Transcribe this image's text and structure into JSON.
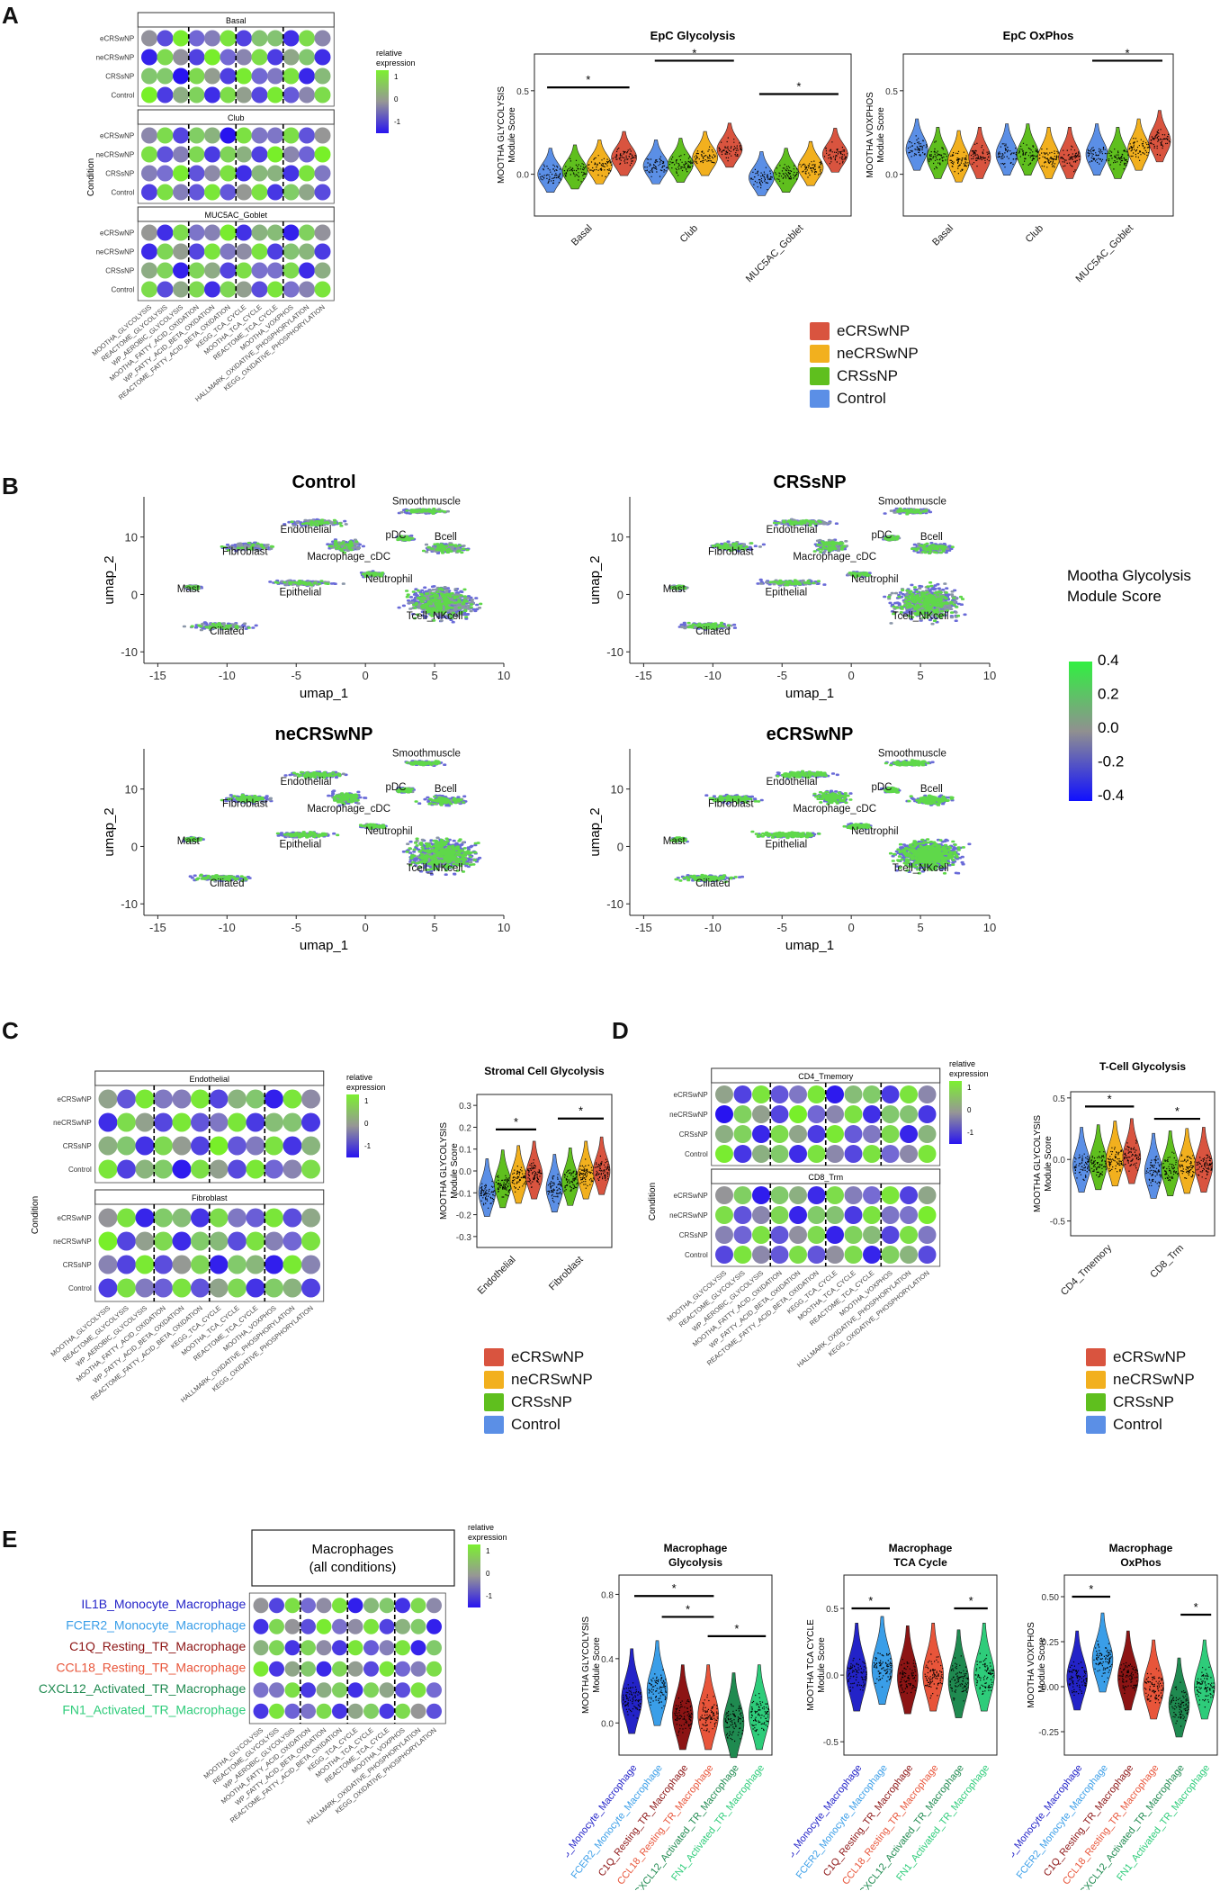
{
  "panels": {
    "A": "A",
    "B": "B",
    "C": "C",
    "D": "D",
    "E": "E"
  },
  "colors": {
    "eCRSwNP": "#d9543f",
    "neCRSwNP": "#f2b01e",
    "CRSsNP": "#5fbf1e",
    "Control": "#5b8fe6"
  },
  "conditions": [
    "eCRSwNP",
    "neCRSwNP",
    "CRSsNP",
    "Control"
  ],
  "pathways_12": [
    "MOOTHA_GLYCOLYSIS",
    "REACTOME_GLYCOLYSIS",
    "WP_AEROBIC_GLYCOLYSIS",
    "MOOTHA_FATTY_ACID_OXIDATION",
    "WP_FATTY_ACID_BETA_OXIDATION",
    "REACTOME_FATTY_ACID_BETA_OXIDATION",
    "KEGG_TCA_CYCLE",
    "MOOTHA_TCA_CYCLE",
    "REACTOME_TCA_CYCLE",
    "MOOTHA_VOXPHOS",
    "HALLMARK_OXIDATIVE_PHOSPHORYLATION",
    "KEGG_OXIDATIVE_PHOSPHORYLATION"
  ],
  "dot_legend": {
    "title": "relative\nexpression",
    "ticks": [
      "1",
      "0",
      "-1"
    ]
  },
  "condition_axis": "Condition",
  "panelA": {
    "dotplot": {
      "facets": [
        "Basal",
        "Club",
        "MUC5AC_Goblet"
      ]
    },
    "violin_gly": {
      "title": "EpC Glycolysis",
      "ylabel": [
        "MOOTHA GLYCOLYSIS",
        "Module Score"
      ],
      "yticks": [
        "0.0",
        "0.5"
      ],
      "groups": [
        "Basal",
        "Club",
        "MUC5AC_Goblet"
      ]
    },
    "violin_ox": {
      "title": "EpC OxPhos",
      "ylabel": [
        "MOOTHA VOXPHOS",
        "Module Score"
      ],
      "yticks": [
        "0.0",
        "0.5"
      ],
      "groups": [
        "Basal",
        "Club",
        "MUC5AC_Goblet"
      ]
    },
    "legend": [
      "eCRSwNP",
      "neCRSwNP",
      "CRSsNP",
      "Control"
    ]
  },
  "panelB": {
    "titles": [
      "Control",
      "CRSsNP",
      "neCRSwNP",
      "eCRSwNP"
    ],
    "xlabel": "umap_1",
    "ylabel": "umap_2",
    "xticks": [
      "-15",
      "-10",
      "-5",
      "0",
      "5",
      "10"
    ],
    "yticks": [
      "10",
      "0",
      "-10"
    ],
    "clusters": [
      "Smoothmuscle",
      "Endothelial",
      "pDC",
      "Bcell",
      "Fibroblast",
      "Macrophage_cDC",
      "Mast",
      "Neutrophil",
      "Epithelial",
      "Tcell_NKcell",
      "Ciliated"
    ],
    "colorbar": {
      "title": [
        "Mootha Glycolysis",
        "Module Score"
      ],
      "ticks": [
        "0.4",
        "0.2",
        "0.0",
        "-0.2",
        "-0.4"
      ]
    }
  },
  "panelC": {
    "dotplot": {
      "facets": [
        "Endothelial",
        "Fibroblast"
      ]
    },
    "violin": {
      "title": "Stromal Cell Glycolysis",
      "ylabel": [
        "MOOTHA GLYCOLYSIS",
        "Module Score"
      ],
      "yticks": [
        "0.3",
        "0.2",
        "0.1",
        "0.0",
        "-0.1",
        "-0.2",
        "-0.3"
      ],
      "groups": [
        "Endothelial",
        "Fibroblast"
      ]
    },
    "legend": [
      "eCRSwNP",
      "neCRSwNP",
      "CRSsNP",
      "Control"
    ]
  },
  "panelD": {
    "dotplot": {
      "facets": [
        "CD4_Tmemory",
        "CD8_Trm"
      ]
    },
    "violin": {
      "title": "T-Cell Glycolysis",
      "ylabel": [
        "MOOTHA GLYCOLYSIS",
        "Module Score"
      ],
      "yticks": [
        "0.5",
        "0.0",
        "-0.5"
      ],
      "groups": [
        "CD4_Tmemory",
        "CD8_Trm"
      ]
    },
    "legend": [
      "eCRSwNP",
      "neCRSwNP",
      "CRSsNP",
      "Control"
    ]
  },
  "panelE": {
    "header": [
      "Macrophages",
      "(all conditions)"
    ],
    "macrophages": [
      "IL1B_Monocyte_Macrophage",
      "FCER2_Monocyte_Macrophage",
      "C1Q_Resting_TR_Macrophage",
      "CCL18_Resting_TR_Macrophage",
      "CXCL12_Activated_TR_Macrophage",
      "FN1_Activated_TR_Macrophage"
    ],
    "mac_colors": [
      "#2323c8",
      "#3a9ee8",
      "#8c1414",
      "#e8553a",
      "#1f8a50",
      "#2ecc7a"
    ],
    "violins": [
      {
        "title": [
          "Macrophage",
          "Glycolysis"
        ],
        "ylabel": [
          "MOOTHA GLYCOLYSIS",
          "Module Score"
        ],
        "yticks": [
          "0.8",
          "0.4",
          "0.0"
        ]
      },
      {
        "title": [
          "Macrophage",
          "TCA Cycle"
        ],
        "ylabel": [
          "MOOTHA TCA CYCLE",
          "Module Score"
        ],
        "yticks": [
          "0.5",
          "0.0",
          "-0.5"
        ]
      },
      {
        "title": [
          "Macrophage",
          "OxPhos"
        ],
        "ylabel": [
          "MOOTHA VOXPHOS",
          "Module Score"
        ],
        "yticks": [
          "0.50",
          "0.25",
          "0.00",
          "-0.25"
        ]
      }
    ]
  },
  "star": "*",
  "chart_data": [
    {
      "type": "violin",
      "title": "EpC Glycolysis",
      "categories": [
        "Basal",
        "Club",
        "MUC5AC_Goblet"
      ],
      "series": [
        {
          "name": "Control",
          "values": [
            0.0,
            0.05,
            -0.02
          ]
        },
        {
          "name": "CRSsNP",
          "values": [
            0.02,
            0.06,
            0.0
          ]
        },
        {
          "name": "neCRSwNP",
          "values": [
            0.05,
            0.1,
            0.04
          ]
        },
        {
          "name": "eCRSwNP",
          "values": [
            0.1,
            0.15,
            0.12
          ]
        }
      ],
      "ylim": [
        -0.2,
        0.7
      ],
      "ylabel": "MOOTHA GLYCOLYSIS Module Score"
    },
    {
      "type": "violin",
      "title": "EpC OxPhos",
      "categories": [
        "Basal",
        "Club",
        "MUC5AC_Goblet"
      ],
      "series": [
        {
          "name": "Control",
          "values": [
            0.15,
            0.12,
            0.12
          ]
        },
        {
          "name": "CRSsNP",
          "values": [
            0.1,
            0.12,
            0.1
          ]
        },
        {
          "name": "neCRSwNP",
          "values": [
            0.08,
            0.1,
            0.15
          ]
        },
        {
          "name": "eCRSwNP",
          "values": [
            0.1,
            0.1,
            0.2
          ]
        }
      ],
      "ylim": [
        -0.2,
        0.7
      ],
      "ylabel": "MOOTHA VOXPHOS Module Score"
    },
    {
      "type": "violin",
      "title": "Stromal Cell Glycolysis",
      "categories": [
        "Endothelial",
        "Fibroblast"
      ],
      "series": [
        {
          "name": "Control",
          "values": [
            -0.1,
            -0.08
          ]
        },
        {
          "name": "CRSsNP",
          "values": [
            -0.06,
            -0.05
          ]
        },
        {
          "name": "neCRSwNP",
          "values": [
            -0.04,
            -0.02
          ]
        },
        {
          "name": "eCRSwNP",
          "values": [
            -0.02,
            0.0
          ]
        }
      ],
      "ylim": [
        -0.35,
        0.35
      ]
    },
    {
      "type": "violin",
      "title": "T-Cell Glycolysis",
      "categories": [
        "CD4_Tmemory",
        "CD8_Trm"
      ],
      "series": [
        {
          "name": "Control",
          "values": [
            -0.05,
            -0.1
          ]
        },
        {
          "name": "CRSsNP",
          "values": [
            -0.03,
            -0.08
          ]
        },
        {
          "name": "neCRSwNP",
          "values": [
            0.0,
            -0.06
          ]
        },
        {
          "name": "eCRSwNP",
          "values": [
            0.02,
            -0.05
          ]
        }
      ],
      "ylim": [
        -0.6,
        0.5
      ]
    },
    {
      "type": "violin",
      "title": "Macrophage Glycolysis",
      "categories": [
        "IL1B_Monocyte_Macrophage",
        "FCER2_Monocyte_Macrophage",
        "C1Q_Resting_TR_Macrophage",
        "CCL18_Resting_TR_Macrophage",
        "CXCL12_Activated_TR_Macrophage",
        "FN1_Activated_TR_Macrophage"
      ],
      "values": [
        0.15,
        0.2,
        0.05,
        0.05,
        0.0,
        0.05
      ],
      "ylim": [
        -0.2,
        0.9
      ]
    },
    {
      "type": "violin",
      "title": "Macrophage TCA Cycle",
      "categories": [
        "IL1B_Monocyte_Macrophage",
        "FCER2_Monocyte_Macrophage",
        "C1Q_Resting_TR_Macrophage",
        "CCL18_Resting_TR_Macrophage",
        "CXCL12_Activated_TR_Macrophage",
        "FN1_Activated_TR_Macrophage"
      ],
      "values": [
        0.0,
        0.05,
        -0.02,
        0.0,
        -0.05,
        0.0
      ],
      "ylim": [
        -0.6,
        0.7
      ]
    },
    {
      "type": "violin",
      "title": "Macrophage OxPhos",
      "categories": [
        "IL1B_Monocyte_Macrophage",
        "FCER2_Monocyte_Macrophage",
        "C1Q_Resting_TR_Macrophage",
        "CCL18_Resting_TR_Macrophage",
        "CXCL12_Activated_TR_Macrophage",
        "FN1_Activated_TR_Macrophage"
      ],
      "values": [
        0.05,
        0.15,
        0.05,
        0.0,
        -0.1,
        0.0
      ],
      "ylim": [
        -0.35,
        0.6
      ]
    }
  ]
}
